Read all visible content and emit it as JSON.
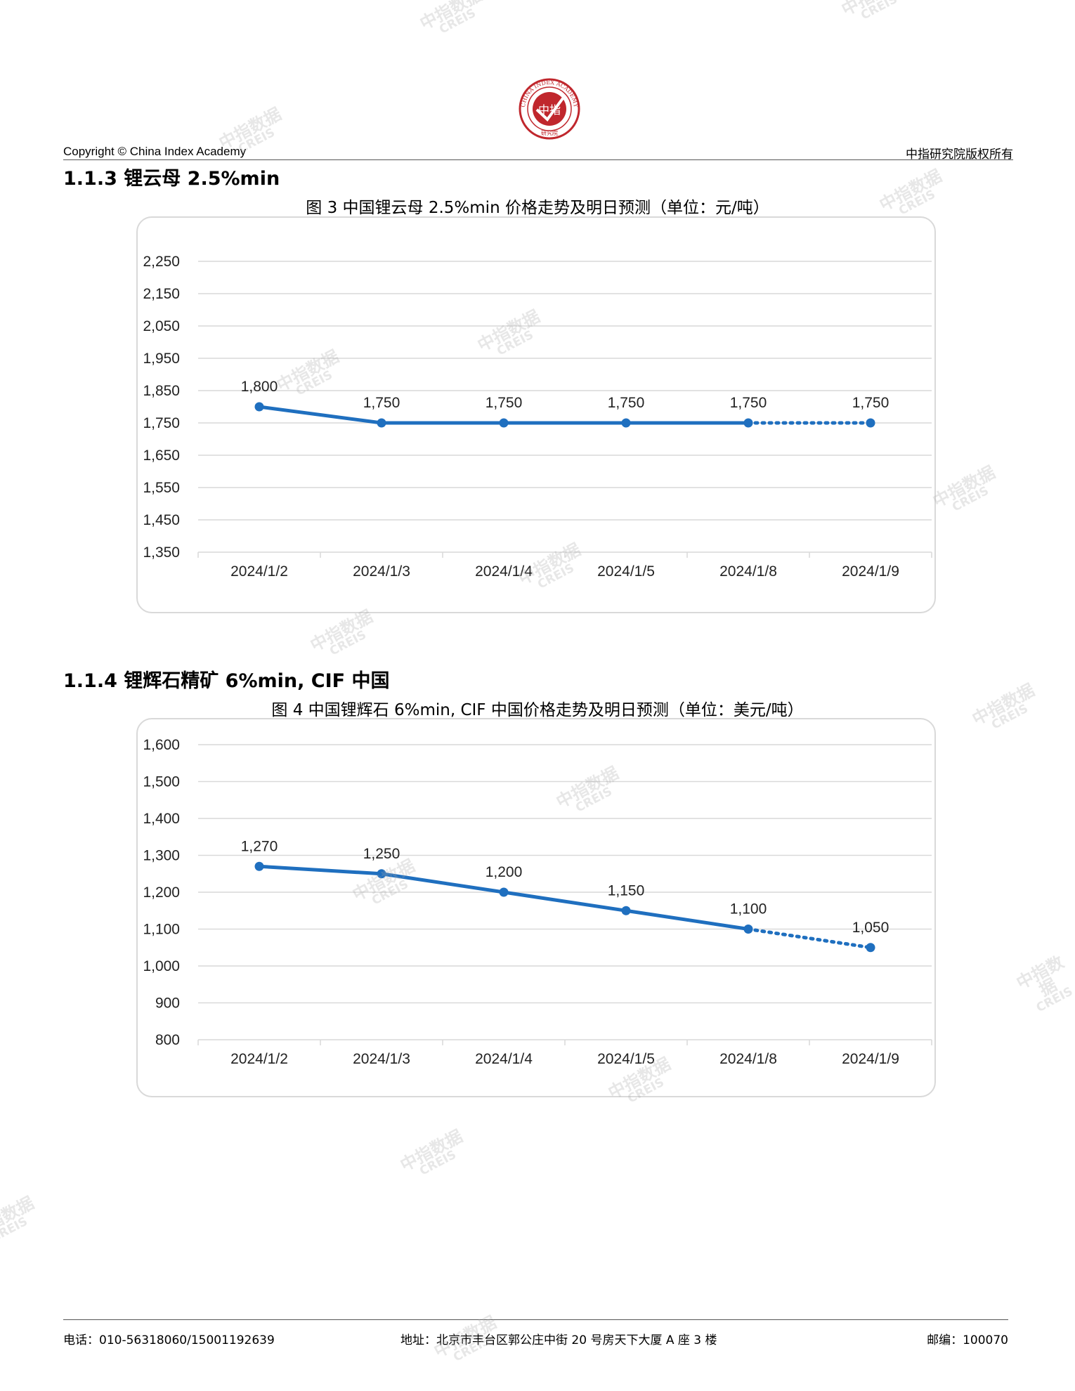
{
  "header": {
    "copyright": "Copyright © China Index Academy",
    "rights": "中指研究院版权所有",
    "logo_text": "中指",
    "logo_ring_text": "CHINA INDEX ACADEMY",
    "logo_bottom_text": "研究院"
  },
  "watermark": {
    "cn": "中指数据",
    "en": "CREIS"
  },
  "sections": [
    {
      "title": "1.1.3 锂云母 2.5%min",
      "figure_title": "图 3 中国锂云母 2.5%min 价格走势及明日预测（单位：元/吨）"
    },
    {
      "title": "1.1.4 锂辉石精矿 6%min, CIF 中国",
      "figure_title": "图 4 中国锂辉石 6%min, CIF 中国价格走势及明日预测（单位：美元/吨）"
    }
  ],
  "chart_data": [
    {
      "type": "line",
      "title": "图 3 中国锂云母 2.5%min 价格走势及明日预测（单位：元/吨）",
      "categories": [
        "2024/1/2",
        "2024/1/3",
        "2024/1/4",
        "2024/1/5",
        "2024/1/8",
        "2024/1/9"
      ],
      "values": [
        1800,
        1750,
        1750,
        1750,
        1750,
        1750
      ],
      "value_labels": [
        "1,800",
        "1,750",
        "1,750",
        "1,750",
        "1,750",
        "1,750"
      ],
      "forecast_from_index": 4,
      "ylim": [
        1350,
        2250
      ],
      "yticks": [
        1350,
        1450,
        1550,
        1650,
        1750,
        1850,
        1950,
        2050,
        2150,
        2250
      ],
      "ytick_labels": [
        "1,350",
        "1,450",
        "1,550",
        "1,650",
        "1,750",
        "1,850",
        "1,950",
        "2,050",
        "2,150",
        "2,250"
      ],
      "grid": true,
      "color": "#1f6fbf"
    },
    {
      "type": "line",
      "title": "图 4 中国锂辉石 6%min, CIF 中国价格走势及明日预测（单位：美元/吨）",
      "categories": [
        "2024/1/2",
        "2024/1/3",
        "2024/1/4",
        "2024/1/5",
        "2024/1/8",
        "2024/1/9"
      ],
      "values": [
        1270,
        1250,
        1200,
        1150,
        1100,
        1050
      ],
      "value_labels": [
        "1,270",
        "1,250",
        "1,200",
        "1,150",
        "1,100",
        "1,050"
      ],
      "forecast_from_index": 4,
      "ylim": [
        800,
        1600
      ],
      "yticks": [
        800,
        900,
        1000,
        1100,
        1200,
        1300,
        1400,
        1500,
        1600
      ],
      "ytick_labels": [
        "800",
        "900",
        "1,000",
        "1,100",
        "1,200",
        "1,300",
        "1,400",
        "1,500",
        "1,600"
      ],
      "grid": true,
      "color": "#1f6fbf"
    }
  ],
  "footer": {
    "phone": "电话：010-56318060/15001192639",
    "address": "地址：北京市丰台区郭公庄中街 20 号房天下大厦 A 座 3 楼",
    "postcode": "邮编：100070"
  }
}
